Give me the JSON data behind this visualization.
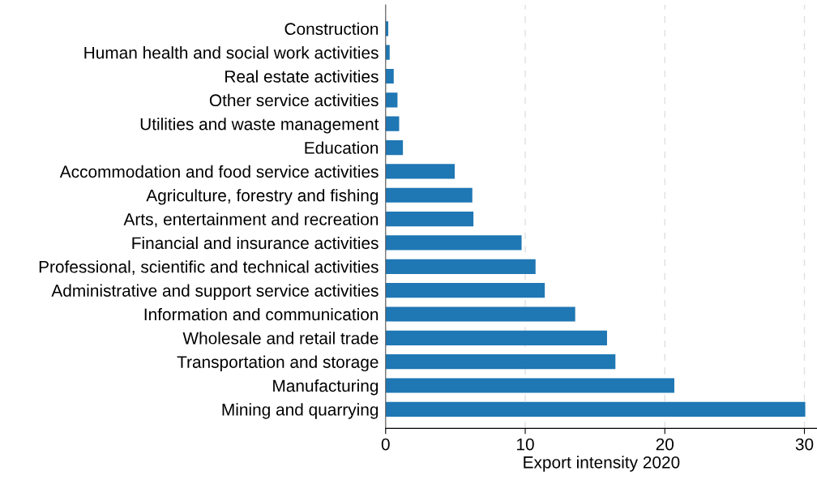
{
  "chart_data": {
    "type": "bar",
    "orientation": "horizontal",
    "xlabel": "Export intensity 2020",
    "categories": [
      "Construction",
      "Human health and social work activities",
      "Real estate activities",
      "Other service activities",
      "Utilities and waste management",
      "Education",
      "Accommodation and food service activities",
      "Agriculture, forestry and fishing",
      "Arts, entertainment and recreation",
      "Financial and insurance activities",
      "Professional, scientific and technical activities",
      "Administrative and support service activities",
      "Information and communication",
      "Wholesale and retail trade",
      "Transportation and storage",
      "Manufacturing",
      "Mining and quarrying"
    ],
    "values": [
      0.19,
      0.29,
      0.58,
      0.85,
      0.97,
      1.24,
      4.95,
      6.21,
      6.29,
      9.74,
      10.74,
      11.4,
      13.58,
      15.86,
      16.46,
      20.68,
      30.06
    ],
    "color": "#1f77b4",
    "xlim": [
      0,
      30.9
    ],
    "xticks": [
      0,
      10,
      20,
      30
    ],
    "grid": "x",
    "legend": false
  }
}
